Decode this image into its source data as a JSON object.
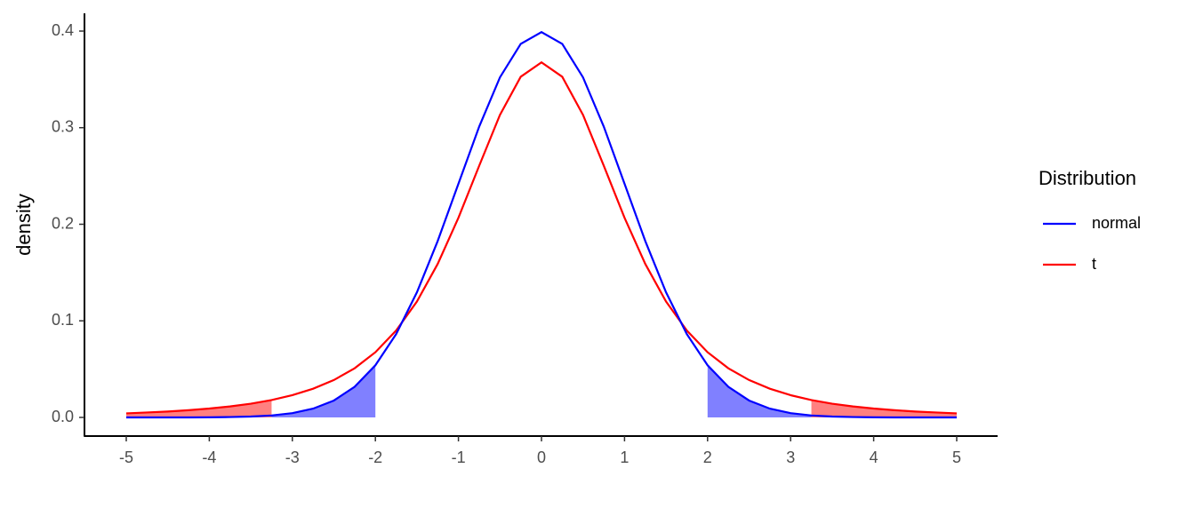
{
  "chart_data": {
    "type": "line",
    "ylabel": "density",
    "x": [
      -5,
      -4.75,
      -4.5,
      -4.25,
      -4,
      -3.75,
      -3.5,
      -3.25,
      -3,
      -2.75,
      -2.5,
      -2.25,
      -2,
      -1.75,
      -1.5,
      -1.25,
      -1,
      -0.75,
      -0.5,
      -0.25,
      0,
      0.25,
      0.5,
      0.75,
      1,
      1.25,
      1.5,
      1.75,
      2,
      2.25,
      2.5,
      2.75,
      3,
      3.25,
      3.5,
      3.75,
      4,
      4.25,
      4.5,
      4.75,
      5
    ],
    "series": [
      {
        "name": "normal",
        "color": "#0000ff",
        "shade_color": "#8080ff",
        "shade_beyond": 2,
        "values": [
          0,
          0,
          0,
          0,
          0.0001,
          0.0004,
          0.0009,
          0.002,
          0.0044,
          0.0091,
          0.0175,
          0.0317,
          0.054,
          0.0863,
          0.1295,
          0.1826,
          0.242,
          0.3011,
          0.3521,
          0.3867,
          0.3989,
          0.3867,
          0.3521,
          0.3011,
          0.242,
          0.1826,
          0.1295,
          0.0863,
          0.054,
          0.0317,
          0.0175,
          0.0091,
          0.0044,
          0.002,
          0.0009,
          0.0004,
          0.0001,
          0,
          0,
          0,
          0
        ]
      },
      {
        "name": "t",
        "color": "#ff0000",
        "shade_color": "#ff8080",
        "shade_beyond": 3.25,
        "values": [
          0.0042,
          0.0051,
          0.0061,
          0.0075,
          0.0092,
          0.0114,
          0.0142,
          0.018,
          0.023,
          0.0297,
          0.0387,
          0.0509,
          0.0675,
          0.09,
          0.12,
          0.1589,
          0.2067,
          0.2606,
          0.3132,
          0.3527,
          0.3676,
          0.3527,
          0.3132,
          0.2606,
          0.2067,
          0.1589,
          0.12,
          0.09,
          0.0675,
          0.0509,
          0.0387,
          0.0297,
          0.023,
          0.018,
          0.0142,
          0.0114,
          0.0092,
          0.0075,
          0.0061,
          0.0051,
          0.0042
        ]
      }
    ],
    "xlim": [
      -5,
      5
    ],
    "ylim": [
      0,
      0.4
    ],
    "xticks": [
      -5,
      -4,
      -3,
      -2,
      -1,
      0,
      1,
      2,
      3,
      4,
      5
    ],
    "yticks": [
      {
        "value": 0,
        "label": "0.0"
      },
      0.1,
      0.2,
      0.3,
      0.4
    ],
    "legend_title": "Distribution",
    "legend": "right",
    "grid": false
  }
}
